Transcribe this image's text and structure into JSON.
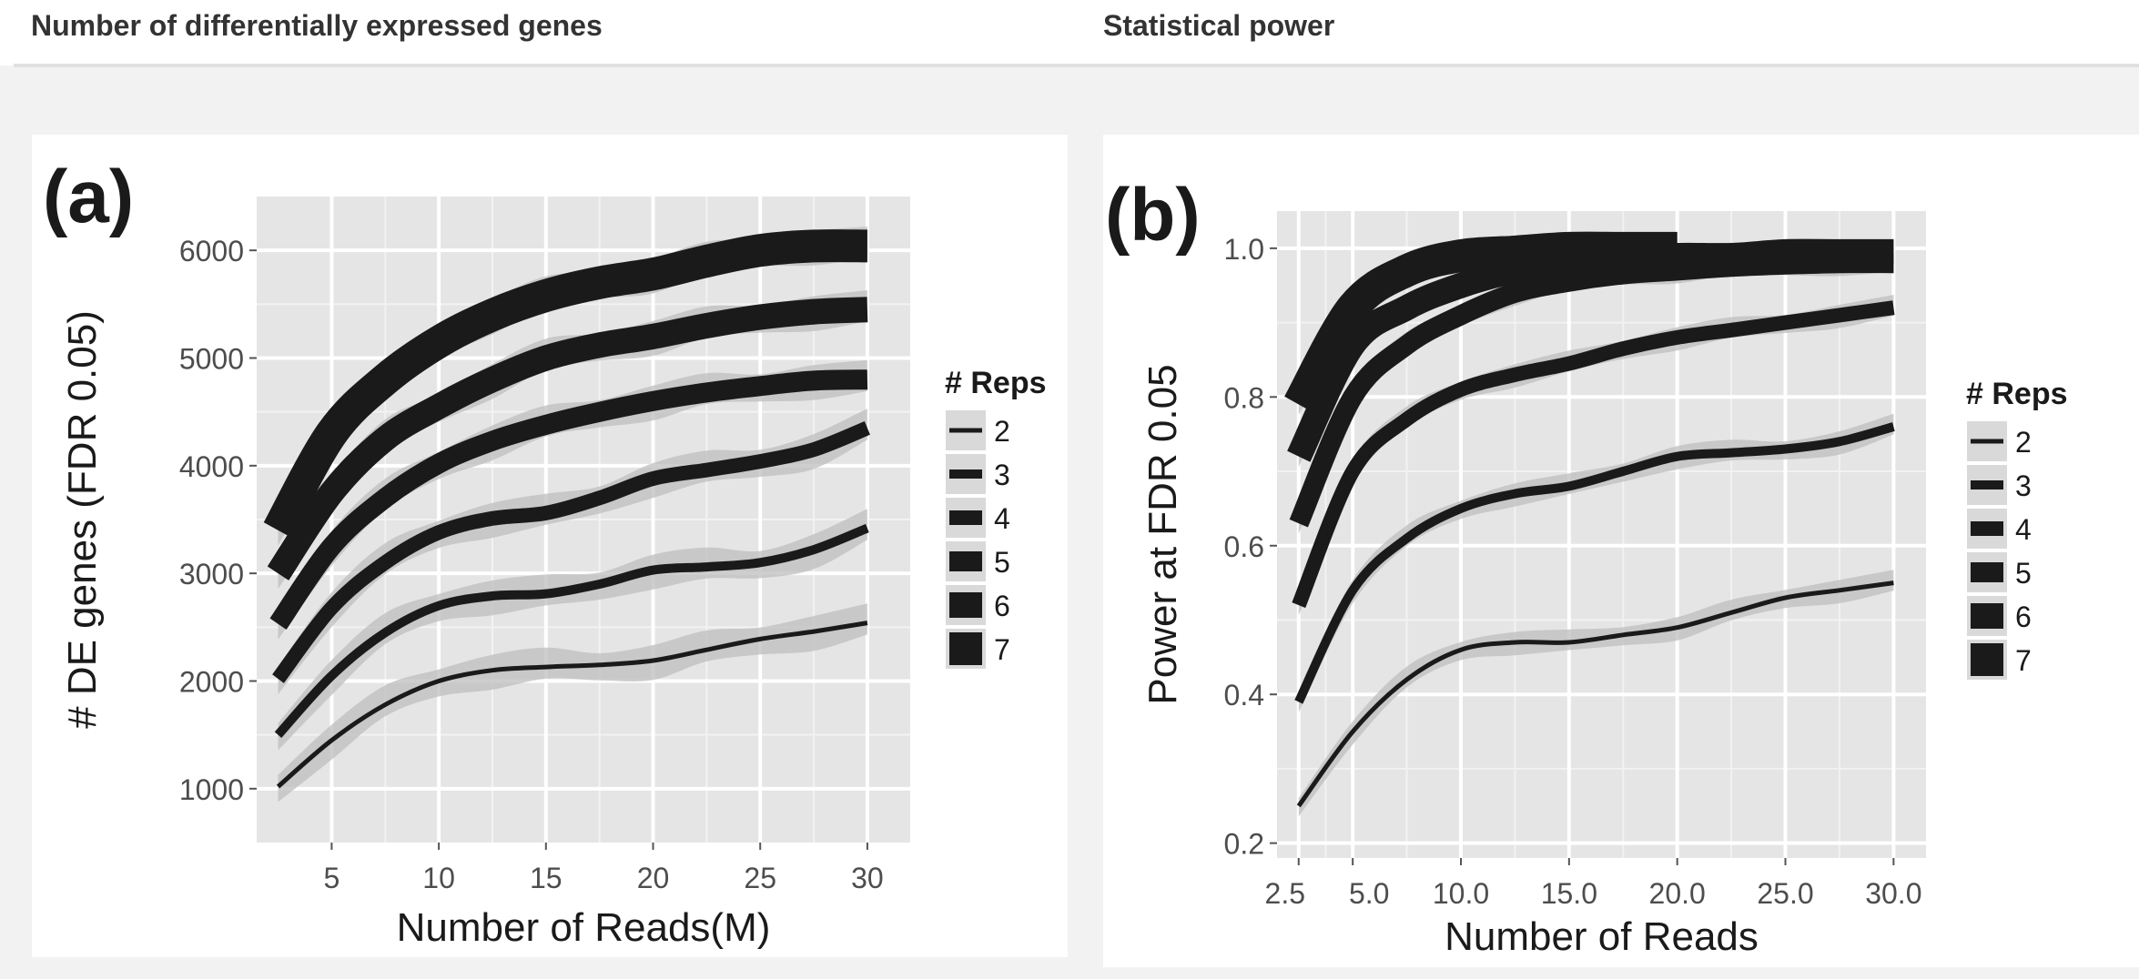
{
  "header": {
    "left_title": "Number of differentially expressed genes",
    "right_title": "Statistical power"
  },
  "chart_data": [
    {
      "type": "line",
      "panel_label": "(a)",
      "title": "",
      "xlabel": "Number of Reads(M)",
      "ylabel": "# DE genes (FDR 0.05)",
      "xlim": [
        1.5,
        32
      ],
      "ylim": [
        500,
        6500
      ],
      "grid": true,
      "confidence_band": true,
      "x_ticks": [
        5,
        10,
        15,
        20,
        25,
        30
      ],
      "y_ticks": [
        1000,
        2000,
        3000,
        4000,
        5000,
        6000
      ],
      "x_tick_labels": [
        "5",
        "10",
        "15",
        "20",
        "25",
        "30"
      ],
      "y_tick_labels": [
        "1000",
        "2000",
        "3000",
        "4000",
        "5000",
        "6000"
      ],
      "legend": {
        "title": "# Reps",
        "position": "right",
        "entries": [
          "2",
          "3",
          "4",
          "5",
          "6",
          "7"
        ]
      },
      "series": [
        {
          "name": "2",
          "x": [
            2.5,
            5,
            7.5,
            10,
            12.5,
            15,
            17.5,
            20,
            22.5,
            25,
            27.5,
            30
          ],
          "y": [
            1020,
            1450,
            1780,
            2000,
            2100,
            2130,
            2150,
            2190,
            2290,
            2390,
            2460,
            2540
          ]
        },
        {
          "name": "3",
          "x": [
            2.5,
            5,
            7.5,
            10,
            12.5,
            15,
            17.5,
            20,
            22.5,
            25,
            27.5,
            30
          ],
          "y": [
            1500,
            2050,
            2450,
            2700,
            2790,
            2810,
            2900,
            3030,
            3060,
            3100,
            3220,
            3420
          ]
        },
        {
          "name": "4",
          "x": [
            2.5,
            5,
            7.5,
            10,
            12.5,
            15,
            17.5,
            20,
            22.5,
            25,
            27.5,
            30
          ],
          "y": [
            2020,
            2680,
            3100,
            3380,
            3510,
            3560,
            3700,
            3880,
            3960,
            4040,
            4150,
            4350
          ]
        },
        {
          "name": "5",
          "x": [
            2.5,
            5,
            7.5,
            10,
            12.5,
            15,
            17.5,
            20,
            22.5,
            25,
            27.5,
            30
          ],
          "y": [
            2530,
            3250,
            3700,
            4020,
            4230,
            4380,
            4500,
            4600,
            4680,
            4740,
            4790,
            4800
          ]
        },
        {
          "name": "6",
          "x": [
            2.5,
            5,
            7.5,
            10,
            12.5,
            15,
            17.5,
            20,
            22.5,
            25,
            27.5,
            30
          ],
          "y": [
            3000,
            3750,
            4250,
            4550,
            4800,
            5000,
            5120,
            5200,
            5300,
            5380,
            5430,
            5450
          ]
        },
        {
          "name": "7",
          "x": [
            2.5,
            5,
            7.5,
            10,
            12.5,
            15,
            17.5,
            20,
            22.5,
            25,
            27.5,
            30
          ],
          "y": [
            3400,
            4300,
            4800,
            5150,
            5400,
            5580,
            5700,
            5780,
            5900,
            6000,
            6040,
            6040
          ]
        }
      ]
    },
    {
      "type": "line",
      "panel_label": "(b)",
      "title": "",
      "xlabel": "Number of Reads",
      "ylabel": "Power at FDR 0.05",
      "xlim": [
        1.5,
        31.5
      ],
      "ylim": [
        0.18,
        1.05
      ],
      "grid": true,
      "confidence_band": true,
      "x_ticks": [
        2.5,
        5,
        10,
        15,
        20,
        25,
        30
      ],
      "y_ticks": [
        0.2,
        0.4,
        0.6,
        0.8,
        1.0
      ],
      "x_tick_labels": [
        "2.5",
        "5.0",
        "10.0",
        "15.0",
        "20.0",
        "25.0",
        "30.0"
      ],
      "y_tick_labels": [
        "0.2",
        "0.4",
        "0.6",
        "0.8",
        "1.0"
      ],
      "legend": {
        "title": "# Reps",
        "position": "right",
        "entries": [
          "2",
          "3",
          "4",
          "5",
          "6",
          "7"
        ]
      },
      "series": [
        {
          "name": "2",
          "x": [
            2.5,
            5,
            7.5,
            10,
            12.5,
            15,
            17.5,
            20,
            22.5,
            25,
            27.5,
            30
          ],
          "y": [
            0.25,
            0.35,
            0.42,
            0.46,
            0.47,
            0.47,
            0.48,
            0.49,
            0.51,
            0.53,
            0.54,
            0.55
          ]
        },
        {
          "name": "3",
          "x": [
            2.5,
            5,
            7.5,
            10,
            12.5,
            15,
            17.5,
            20,
            22.5,
            25,
            27.5,
            30
          ],
          "y": [
            0.39,
            0.54,
            0.61,
            0.65,
            0.67,
            0.68,
            0.7,
            0.72,
            0.725,
            0.73,
            0.74,
            0.76
          ]
        },
        {
          "name": "4",
          "x": [
            2.5,
            5,
            7.5,
            10,
            12.5,
            15,
            17.5,
            20,
            22.5,
            25,
            27.5,
            30
          ],
          "y": [
            0.52,
            0.7,
            0.77,
            0.81,
            0.83,
            0.845,
            0.865,
            0.88,
            0.89,
            0.9,
            0.91,
            0.92
          ]
        },
        {
          "name": "5",
          "x": [
            2.5,
            5,
            7.5,
            10,
            12.5,
            15,
            17.5,
            20,
            22.5,
            25,
            27.5,
            30
          ],
          "y": [
            0.63,
            0.8,
            0.87,
            0.91,
            0.94,
            0.955,
            0.965,
            0.97,
            0.975,
            0.978,
            0.98,
            0.98
          ]
        },
        {
          "name": "6",
          "x": [
            2.5,
            5,
            7.5,
            10,
            12.5,
            15,
            17.5,
            20,
            22.5,
            25,
            27.5,
            30
          ],
          "y": [
            0.72,
            0.87,
            0.92,
            0.95,
            0.97,
            0.98,
            0.985,
            0.99,
            0.99,
            0.995,
            0.995,
            0.995
          ]
        },
        {
          "name": "7",
          "x": [
            2.5,
            5,
            7.5,
            10,
            12.5,
            15,
            17.5,
            20
          ],
          "y": [
            0.79,
            0.92,
            0.97,
            0.99,
            0.995,
            1.0,
            1.0,
            1.0
          ]
        }
      ]
    }
  ]
}
